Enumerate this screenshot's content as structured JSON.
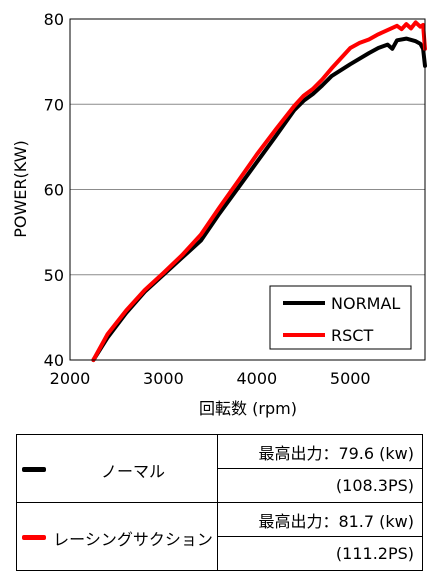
{
  "chart_data": {
    "type": "line",
    "xlabel": "回転数 (rpm)",
    "ylabel": "POWER(KW)",
    "xlim": [
      2000,
      5800
    ],
    "ylim": [
      40,
      80
    ],
    "xticks": [
      "2000",
      "3000",
      "4000",
      "5000"
    ],
    "yticks": [
      "40",
      "50",
      "60",
      "70",
      "80"
    ],
    "grid": "horizontal",
    "legend_position": "bottom-right",
    "series": [
      {
        "name": "NORMAL",
        "color": "#000000",
        "x": [
          2250,
          2400,
          2600,
          2800,
          3000,
          3200,
          3400,
          3600,
          3800,
          4000,
          4200,
          4400,
          4500,
          4600,
          4700,
          4800,
          5000,
          5200,
          5300,
          5400,
          5450,
          5500,
          5600,
          5700,
          5750,
          5780,
          5800
        ],
        "y": [
          40,
          42.6,
          45.5,
          48,
          50,
          52,
          54,
          57.2,
          60.2,
          63.2,
          66.2,
          69.3,
          70.4,
          71.2,
          72.2,
          73.3,
          74.7,
          76,
          76.6,
          77,
          76.5,
          77.5,
          77.7,
          77.4,
          77.1,
          76.5,
          74.5
        ]
      },
      {
        "name": "RSCT",
        "color": "#ff0000",
        "x": [
          2250,
          2400,
          2600,
          2800,
          3000,
          3200,
          3400,
          3600,
          3800,
          4000,
          4200,
          4400,
          4500,
          4600,
          4700,
          4800,
          5000,
          5100,
          5200,
          5300,
          5400,
          5500,
          5550,
          5600,
          5650,
          5700,
          5750,
          5780,
          5800
        ],
        "y": [
          40,
          43,
          45.8,
          48.2,
          50.2,
          52.3,
          54.7,
          57.9,
          61,
          64.1,
          67,
          69.8,
          71,
          71.8,
          72.9,
          74.2,
          76.6,
          77.2,
          77.6,
          78.2,
          78.7,
          79.2,
          78.8,
          79.4,
          78.9,
          79.6,
          79.1,
          79.3,
          76.5
        ]
      }
    ]
  },
  "table": {
    "rows": [
      {
        "name": "ノーマル",
        "color": "#000000",
        "output_label": "最高出力：79.6 (kw)",
        "ps_label": "(108.3PS)"
      },
      {
        "name": "レーシングサクション",
        "color": "#ff0000",
        "output_label": "最高出力：81.7 (kw)",
        "ps_label": "(111.2PS)"
      }
    ]
  }
}
